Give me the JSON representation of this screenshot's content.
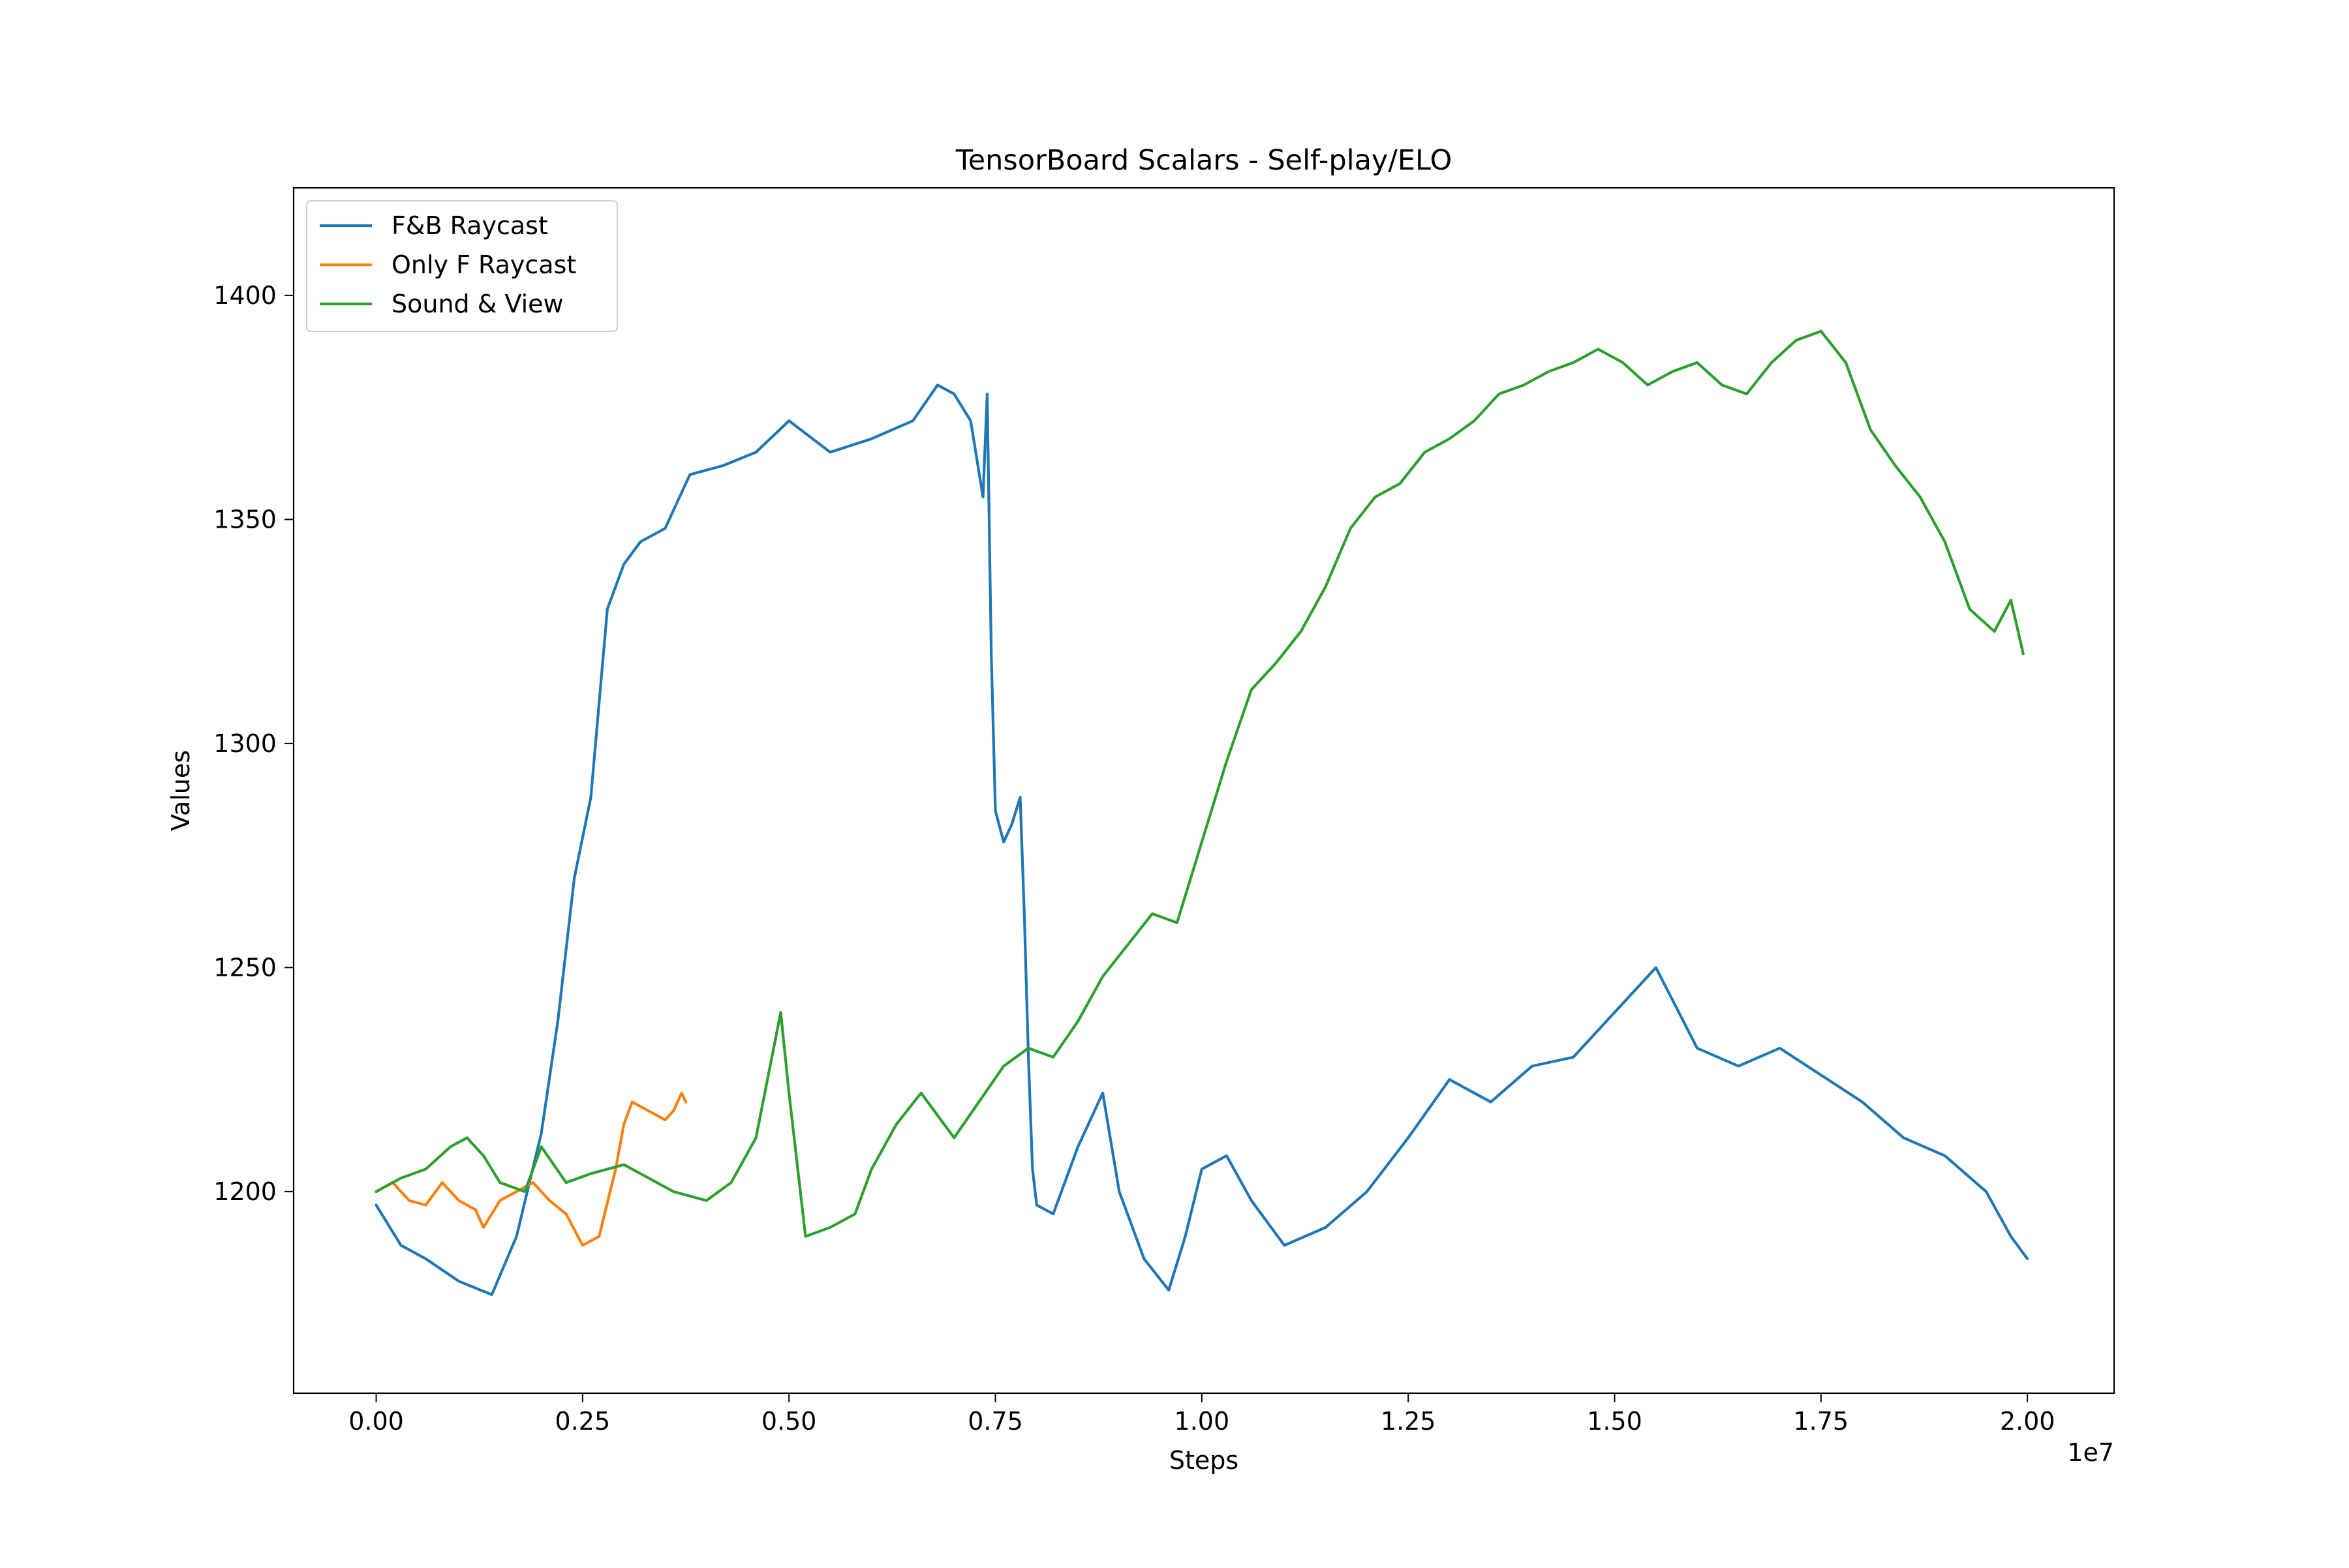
{
  "chart_data": {
    "type": "line",
    "title": "TensorBoard Scalars - Self-play/ELO",
    "xlabel": "Steps",
    "ylabel": "Values",
    "x_offset_text": "1e7",
    "xlim": [
      -0.1,
      2.105
    ],
    "ylim": [
      1155,
      1424
    ],
    "x_ticks": [
      0.0,
      0.25,
      0.5,
      0.75,
      1.0,
      1.25,
      1.5,
      1.75,
      2.0
    ],
    "x_tick_labels": [
      "0.00",
      "0.25",
      "0.50",
      "0.75",
      "1.00",
      "1.25",
      "1.50",
      "1.75",
      "2.00"
    ],
    "y_ticks": [
      1200,
      1250,
      1300,
      1350,
      1400
    ],
    "y_tick_labels": [
      "1200",
      "1250",
      "1300",
      "1350",
      "1400"
    ],
    "grid": false,
    "legend_position": "upper-left",
    "series": [
      {
        "name": "F&B Raycast",
        "color": "#1f77b4",
        "x": [
          0.0,
          0.03,
          0.06,
          0.1,
          0.14,
          0.17,
          0.2,
          0.22,
          0.24,
          0.26,
          0.28,
          0.3,
          0.32,
          0.35,
          0.38,
          0.42,
          0.46,
          0.5,
          0.55,
          0.6,
          0.65,
          0.68,
          0.7,
          0.72,
          0.735,
          0.74,
          0.745,
          0.75,
          0.76,
          0.77,
          0.78,
          0.785,
          0.79,
          0.795,
          0.8,
          0.82,
          0.85,
          0.88,
          0.9,
          0.93,
          0.96,
          0.98,
          1.0,
          1.03,
          1.06,
          1.1,
          1.15,
          1.2,
          1.25,
          1.3,
          1.35,
          1.4,
          1.45,
          1.5,
          1.55,
          1.6,
          1.65,
          1.7,
          1.75,
          1.8,
          1.85,
          1.9,
          1.95,
          1.98,
          2.0
        ],
        "values": [
          1197,
          1188,
          1185,
          1180,
          1177,
          1190,
          1213,
          1238,
          1270,
          1288,
          1330,
          1340,
          1345,
          1348,
          1360,
          1362,
          1365,
          1372,
          1365,
          1368,
          1372,
          1380,
          1378,
          1372,
          1355,
          1378,
          1320,
          1285,
          1278,
          1282,
          1288,
          1262,
          1230,
          1205,
          1197,
          1195,
          1210,
          1222,
          1200,
          1185,
          1178,
          1190,
          1205,
          1208,
          1198,
          1188,
          1192,
          1200,
          1212,
          1225,
          1220,
          1228,
          1230,
          1240,
          1250,
          1232,
          1228,
          1232,
          1226,
          1220,
          1212,
          1208,
          1200,
          1190,
          1185
        ]
      },
      {
        "name": "Only F Raycast",
        "color": "#ff7f0e",
        "x": [
          0.0,
          0.02,
          0.04,
          0.06,
          0.08,
          0.1,
          0.12,
          0.13,
          0.15,
          0.17,
          0.19,
          0.21,
          0.23,
          0.25,
          0.27,
          0.29,
          0.3,
          0.31,
          0.33,
          0.35,
          0.36,
          0.37,
          0.375
        ],
        "values": [
          1200,
          1202,
          1198,
          1197,
          1202,
          1198,
          1196,
          1192,
          1198,
          1200,
          1202,
          1198,
          1195,
          1188,
          1190,
          1205,
          1215,
          1220,
          1218,
          1216,
          1218,
          1222,
          1220
        ]
      },
      {
        "name": "Sound & View",
        "color": "#2ca02c",
        "x": [
          0.0,
          0.03,
          0.06,
          0.09,
          0.11,
          0.13,
          0.15,
          0.18,
          0.2,
          0.23,
          0.26,
          0.3,
          0.33,
          0.36,
          0.4,
          0.43,
          0.46,
          0.49,
          0.5,
          0.52,
          0.55,
          0.58,
          0.6,
          0.63,
          0.66,
          0.7,
          0.73,
          0.76,
          0.79,
          0.82,
          0.85,
          0.88,
          0.91,
          0.94,
          0.97,
          1.0,
          1.03,
          1.06,
          1.09,
          1.12,
          1.15,
          1.18,
          1.21,
          1.24,
          1.27,
          1.3,
          1.33,
          1.36,
          1.39,
          1.42,
          1.45,
          1.48,
          1.51,
          1.54,
          1.57,
          1.6,
          1.63,
          1.66,
          1.69,
          1.72,
          1.75,
          1.78,
          1.81,
          1.84,
          1.87,
          1.9,
          1.93,
          1.96,
          1.98,
          1.995
        ],
        "values": [
          1200,
          1203,
          1205,
          1210,
          1212,
          1208,
          1202,
          1200,
          1210,
          1202,
          1204,
          1206,
          1203,
          1200,
          1198,
          1202,
          1212,
          1240,
          1222,
          1190,
          1192,
          1195,
          1205,
          1215,
          1222,
          1212,
          1220,
          1228,
          1232,
          1230,
          1238,
          1248,
          1255,
          1262,
          1260,
          1278,
          1296,
          1312,
          1318,
          1325,
          1335,
          1348,
          1355,
          1358,
          1365,
          1368,
          1372,
          1378,
          1380,
          1383,
          1385,
          1388,
          1385,
          1380,
          1383,
          1385,
          1380,
          1378,
          1385,
          1390,
          1392,
          1385,
          1370,
          1362,
          1355,
          1345,
          1330,
          1325,
          1332,
          1320
        ]
      }
    ]
  }
}
